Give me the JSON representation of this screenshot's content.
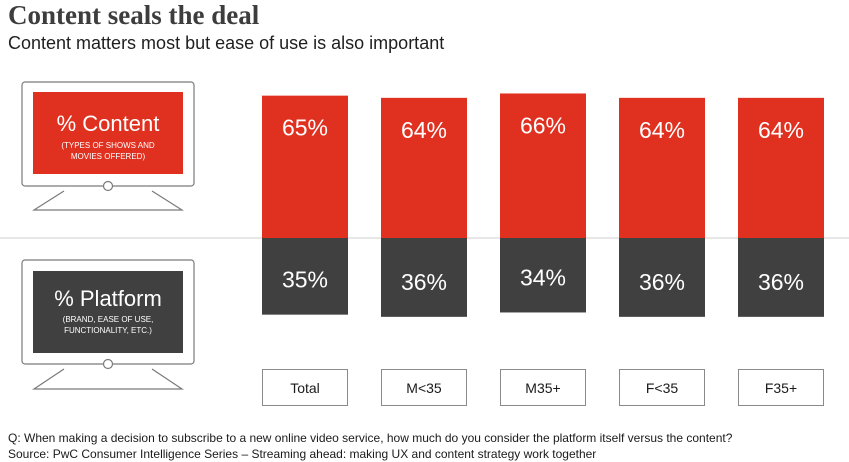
{
  "title": "Content seals the deal",
  "subtitle": "Content matters most but ease of use is also important",
  "legend": {
    "content": {
      "label": "% Content",
      "sub_line1": "(TYPES OF SHOWS AND",
      "sub_line2": "MOVIES OFFERED)"
    },
    "platform": {
      "label": "% Platform",
      "sub_line1": "(BRAND, EASE OF USE,",
      "sub_line2": "FUNCTIONALITY, ETC.)"
    }
  },
  "colors": {
    "content": "#e03120",
    "platform": "#404040",
    "divider": "#cfcfcf",
    "screen_frame": "#7a7a7a"
  },
  "footer": {
    "question": "Q: When making a decision to subscribe to a new online video service, how much do you consider the platform itself versus the content?",
    "source": "Source: PwC Consumer Intelligence Series – Streaming ahead: making UX and content strategy work together"
  },
  "chart_data": {
    "type": "bar",
    "stacked": true,
    "categories": [
      "Total",
      "M<35",
      "M35+",
      "F<35",
      "F35+"
    ],
    "series": [
      {
        "name": "% Content",
        "values": [
          65,
          64,
          66,
          64,
          64
        ],
        "labels": [
          "65%",
          "64%",
          "66%",
          "64%",
          "64%"
        ]
      },
      {
        "name": "% Platform",
        "values": [
          35,
          36,
          34,
          36,
          36
        ],
        "labels": [
          "35%",
          "36%",
          "34%",
          "36%",
          "36%"
        ]
      }
    ],
    "ylim": [
      0,
      100
    ],
    "grid": false
  }
}
